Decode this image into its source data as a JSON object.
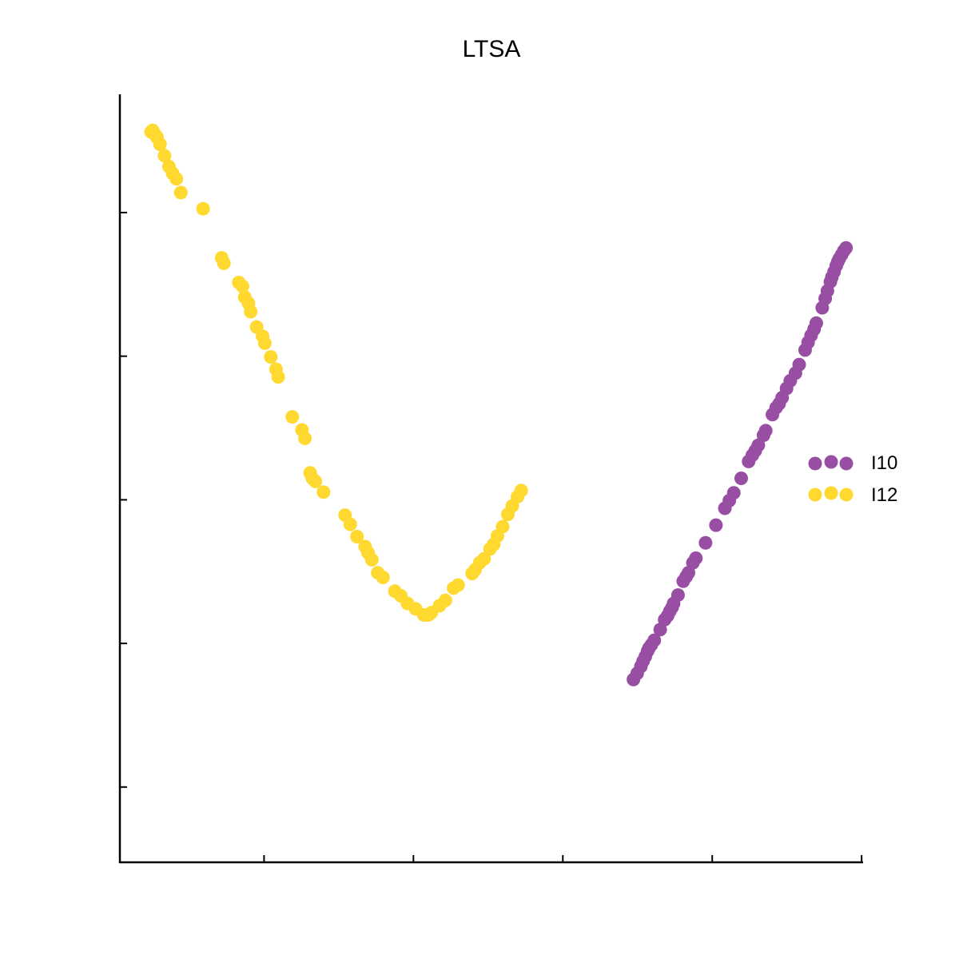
{
  "chart_data": {
    "type": "scatter",
    "title": "LTSA",
    "xlabel": "",
    "ylabel": "",
    "xlim": [
      0,
      1000
    ],
    "ylim": [
      0,
      1000
    ],
    "grid": false,
    "legend_placement": "right",
    "x_tick_values": [
      194,
      395,
      596,
      797,
      998
    ],
    "y_tick_values": [
      98,
      285,
      472,
      659,
      846
    ],
    "series": [
      {
        "name": "I10",
        "color": "#984ea3",
        "points": [
          [
            971,
            791
          ],
          [
            968,
            786
          ],
          [
            966,
            782
          ],
          [
            964,
            777
          ],
          [
            961,
            769
          ],
          [
            958,
            762
          ],
          [
            956,
            756
          ],
          [
            952,
            744
          ],
          [
            949,
            734
          ],
          [
            945,
            722
          ],
          [
            937,
            702
          ],
          [
            934,
            694
          ],
          [
            930,
            686
          ],
          [
            926,
            677
          ],
          [
            922,
            667
          ],
          [
            914,
            648
          ],
          [
            909,
            637
          ],
          [
            902,
            627
          ],
          [
            897,
            617
          ],
          [
            891,
            605
          ],
          [
            887,
            597
          ],
          [
            883,
            592
          ],
          [
            878,
            583
          ],
          [
            869,
            562
          ],
          [
            866,
            556
          ],
          [
            859,
            543
          ],
          [
            855,
            536
          ],
          [
            851,
            530
          ],
          [
            846,
            522
          ],
          [
            836,
            500
          ],
          [
            826,
            481
          ],
          [
            820,
            471
          ],
          [
            814,
            461
          ],
          [
            802,
            439
          ],
          [
            788,
            416
          ],
          [
            775,
            396
          ],
          [
            771,
            390
          ],
          [
            765,
            377
          ],
          [
            762,
            372
          ],
          [
            758,
            366
          ],
          [
            751,
            348
          ],
          [
            745,
            337
          ],
          [
            743,
            332
          ],
          [
            740,
            327
          ],
          [
            737,
            321
          ],
          [
            733,
            316
          ],
          [
            727,
            303
          ],
          [
            719,
            289
          ],
          [
            715,
            283
          ],
          [
            712,
            279
          ],
          [
            710,
            275
          ],
          [
            707,
            268
          ],
          [
            704,
            262
          ],
          [
            701,
            255
          ],
          [
            696,
            246
          ],
          [
            691,
            238
          ],
          [
            977,
            800
          ],
          [
            974,
            796
          ]
        ]
      },
      {
        "name": "I12",
        "color": "#ffd92f",
        "points": [
          [
            47,
            948
          ],
          [
            50,
            944
          ],
          [
            54,
            935
          ],
          [
            60,
            920
          ],
          [
            66,
            906
          ],
          [
            71,
            897
          ],
          [
            76,
            890
          ],
          [
            82,
            872
          ],
          [
            112,
            851
          ],
          [
            137,
            787
          ],
          [
            140,
            780
          ],
          [
            160,
            755
          ],
          [
            165,
            750
          ],
          [
            168,
            736
          ],
          [
            173,
            728
          ],
          [
            176,
            717
          ],
          [
            184,
            697
          ],
          [
            192,
            685
          ],
          [
            195,
            676
          ],
          [
            203,
            658
          ],
          [
            210,
            642
          ],
          [
            213,
            632
          ],
          [
            232,
            580
          ],
          [
            245,
            563
          ],
          [
            249,
            552
          ],
          [
            256,
            507
          ],
          [
            259,
            500
          ],
          [
            263,
            496
          ],
          [
            274,
            482
          ],
          [
            303,
            452
          ],
          [
            310,
            440
          ],
          [
            319,
            424
          ],
          [
            330,
            411
          ],
          [
            334,
            403
          ],
          [
            339,
            394
          ],
          [
            347,
            377
          ],
          [
            354,
            371
          ],
          [
            370,
            353
          ],
          [
            378,
            347
          ],
          [
            387,
            337
          ],
          [
            398,
            330
          ],
          [
            409,
            322
          ],
          [
            415,
            322
          ],
          [
            419,
            325
          ],
          [
            430,
            334
          ],
          [
            438,
            341
          ],
          [
            449,
            357
          ],
          [
            455,
            361
          ],
          [
            474,
            376
          ],
          [
            478,
            381
          ],
          [
            484,
            390
          ],
          [
            490,
            395
          ],
          [
            498,
            408
          ],
          [
            503,
            414
          ],
          [
            508,
            425
          ],
          [
            515,
            437
          ],
          [
            522,
            453
          ],
          [
            528,
            464
          ],
          [
            535,
            476
          ],
          [
            540,
            484
          ],
          [
            44,
            953
          ],
          [
            42,
            951
          ]
        ]
      }
    ]
  }
}
